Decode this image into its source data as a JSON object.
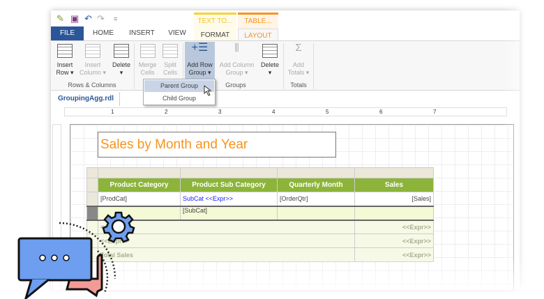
{
  "quick_access": {
    "save_icon": "save-icon",
    "undo_icon": "undo-icon",
    "redo_icon": "redo-icon",
    "customize": "="
  },
  "tabs": {
    "file": "FILE",
    "home": "HOME",
    "insert": "INSERT",
    "view": "VIEW",
    "format": "FORMAT",
    "layout": "LAYOUT"
  },
  "context_tabs": {
    "text": "TEXT TO...",
    "table": "TABLE..."
  },
  "ribbon": {
    "insert_row": [
      "Insert",
      "Row ▾"
    ],
    "insert_column": [
      "Insert",
      "Column ▾"
    ],
    "delete": [
      "Delete",
      "▾"
    ],
    "merge": [
      "Merge",
      "Cells"
    ],
    "split": [
      "Split",
      "Cells"
    ],
    "add_row_group": [
      "Add Row",
      "Group ▾"
    ],
    "add_column_group": [
      "Add Column",
      "Group ▾"
    ],
    "delete2": [
      "Delete",
      "▾"
    ],
    "add_totals": [
      "Add",
      "Totals ▾"
    ],
    "groups": {
      "rows_columns": "Rows & Columns",
      "groups": "Groups",
      "totals": "Totals"
    }
  },
  "dropdown": {
    "parent": "Parent Group",
    "child": "Child Group"
  },
  "document_tab": "GroupingAgg.rdl",
  "ruler": [
    "1",
    "2",
    "3",
    "4",
    "5",
    "6",
    "7"
  ],
  "report": {
    "title": "Sales by Month and Year",
    "headers": [
      "Product Category",
      "Product Sub Category",
      "Quarterly Month",
      "Sales"
    ],
    "row1": [
      "[ProdCat]",
      "SubCat <<Expr>>",
      "[OrderQtr]",
      "[Sales]"
    ],
    "row2": [
      "",
      "[SubCat]",
      "",
      ""
    ],
    "row3": [
      "<<Expr>>",
      "<<Expr>>"
    ],
    "row4": [
      "<<Expr>>",
      "<<Expr>>"
    ],
    "row5": [
      "Total Sales",
      "<<Expr>>"
    ]
  },
  "colors": {
    "file_tab": "#2b579a",
    "header_green": "#8db43a",
    "title_orange": "#f7931e",
    "layout_tab": "#f7931e"
  }
}
